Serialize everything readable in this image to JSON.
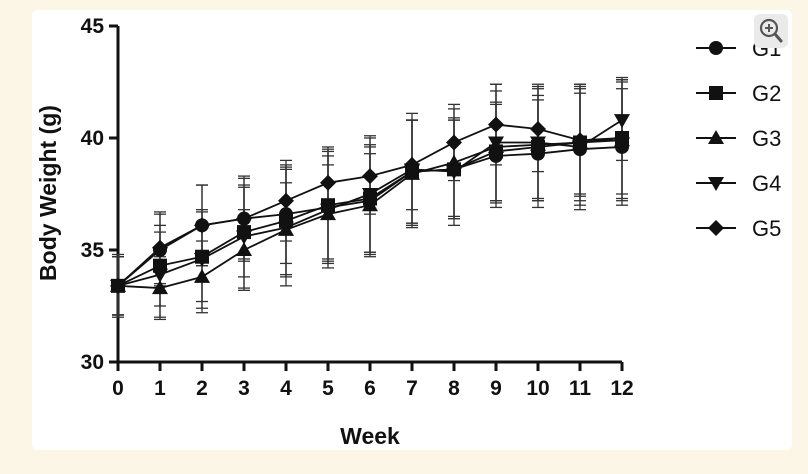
{
  "chart_data": {
    "type": "line",
    "xlabel": "Week",
    "ylabel": "Body  Weight (g)",
    "x": [
      0,
      1,
      2,
      3,
      4,
      5,
      6,
      7,
      8,
      9,
      10,
      11,
      12
    ],
    "xlim": [
      0,
      12
    ],
    "ylim": [
      30,
      45
    ],
    "yticks": [
      30,
      35,
      40,
      45
    ],
    "error_bars": true,
    "legend_position": "right",
    "series": [
      {
        "name": "G1",
        "marker": "circle",
        "values": [
          33.4,
          35.0,
          36.1,
          36.4,
          36.6,
          36.9,
          37.2,
          38.5,
          38.6,
          39.2,
          39.3,
          39.5,
          39.6
        ],
        "errors": [
          1.3,
          1.6,
          1.8,
          1.8,
          2.2,
          2.3,
          2.4,
          2.3,
          2.2,
          2.3,
          2.4,
          2.5,
          2.6
        ]
      },
      {
        "name": "G2",
        "marker": "square",
        "values": [
          33.4,
          34.3,
          34.7,
          35.8,
          36.3,
          37.0,
          37.3,
          38.5,
          38.6,
          39.4,
          39.6,
          39.8,
          40.0
        ],
        "errors": [
          1.4,
          1.8,
          2.0,
          2.0,
          2.4,
          2.5,
          2.4,
          2.3,
          2.2,
          2.2,
          2.3,
          2.4,
          2.5
        ]
      },
      {
        "name": "G3",
        "marker": "triangle-up",
        "values": [
          33.4,
          33.3,
          33.8,
          35.0,
          35.9,
          36.6,
          37.0,
          38.4,
          38.9,
          39.6,
          39.7,
          39.8,
          39.9
        ],
        "errors": [
          1.3,
          1.4,
          1.6,
          1.8,
          2.1,
          2.2,
          2.3,
          2.4,
          2.4,
          2.5,
          2.5,
          2.6,
          2.7
        ]
      },
      {
        "name": "G4",
        "marker": "triangle-down",
        "values": [
          33.4,
          33.9,
          34.6,
          35.6,
          36.0,
          36.8,
          37.5,
          38.6,
          38.5,
          39.8,
          39.8,
          39.6,
          40.8
        ],
        "errors": [
          1.3,
          1.9,
          2.2,
          2.3,
          2.6,
          2.6,
          2.6,
          2.5,
          2.4,
          2.6,
          2.6,
          2.8,
          1.8
        ]
      },
      {
        "name": "G5",
        "marker": "diamond",
        "values": [
          33.4,
          35.1,
          36.1,
          36.4,
          37.2,
          38.0,
          38.3,
          38.8,
          39.8,
          40.6,
          40.4,
          39.9,
          40.0
        ],
        "errors": [
          1.3,
          1.6,
          1.8,
          1.9,
          1.8,
          1.6,
          1.7,
          2.0,
          1.7,
          1.8,
          1.9,
          2.4,
          2.7
        ]
      }
    ]
  },
  "ui": {
    "zoom_icon": "zoom-in-icon"
  }
}
